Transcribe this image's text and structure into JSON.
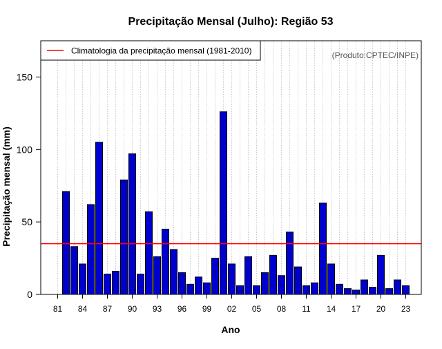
{
  "chart_data": {
    "type": "bar",
    "title": "Precipitação Mensal (Julho): Região 53",
    "xlabel": "Ano",
    "ylabel": "Precipitação mensal (mm)",
    "ylim": [
      0,
      175
    ],
    "yticks": [
      0,
      50,
      100,
      150
    ],
    "grid": "vertical dotted lines at each year",
    "credit": "(Produto:CPTEC/INPE)",
    "legend": {
      "placement": "top-left",
      "entries": [
        {
          "label": "Climatologia da precipitação mensal (1981-2010)",
          "color": "#ff0000"
        }
      ]
    },
    "climatology": 35,
    "categories": [
      "81",
      "82",
      "83",
      "84",
      "85",
      "86",
      "87",
      "88",
      "89",
      "90",
      "91",
      "92",
      "93",
      "94",
      "95",
      "96",
      "97",
      "98",
      "99",
      "00",
      "01",
      "02",
      "03",
      "04",
      "05",
      "06",
      "07",
      "08",
      "09",
      "10",
      "11",
      "12",
      "13",
      "14",
      "15",
      "16",
      "17",
      "18",
      "19",
      "20",
      "21",
      "22",
      "23"
    ],
    "tick_labels": [
      "81",
      "84",
      "87",
      "90",
      "93",
      "96",
      "99",
      "02",
      "05",
      "08",
      "11",
      "14",
      "17",
      "20",
      "23"
    ],
    "tick_label_indices": [
      0,
      3,
      6,
      9,
      12,
      15,
      18,
      21,
      24,
      27,
      30,
      33,
      36,
      39,
      42
    ],
    "values": [
      0,
      71,
      33,
      21,
      62,
      105,
      14,
      16,
      79,
      97,
      14,
      57,
      26,
      45,
      31,
      15,
      7,
      12,
      8,
      25,
      126,
      21,
      6,
      26,
      6,
      15,
      27,
      13,
      43,
      19,
      6,
      8,
      63,
      21,
      7,
      4,
      3,
      10,
      5,
      27,
      4,
      10,
      6
    ],
    "colors": {
      "bar": "#0000cc",
      "bar_edge": "#000000",
      "line": "#ff0000",
      "grid": "#bbbbbb",
      "credit": "#555555"
    }
  }
}
